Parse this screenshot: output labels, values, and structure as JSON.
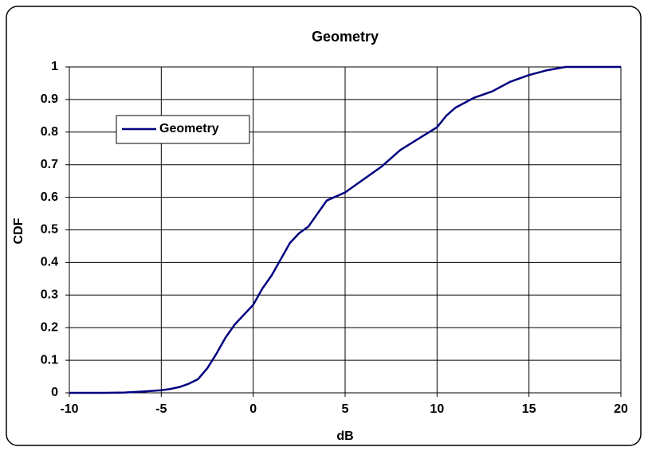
{
  "chart_data": {
    "type": "line",
    "title": "Geometry",
    "x_label": "dB",
    "y_label": "CDF",
    "x": [
      -10,
      -8,
      -7,
      -6,
      -5,
      -4.5,
      -4,
      -3.5,
      -3,
      -2.5,
      -2,
      -1.5,
      -1,
      -0.5,
      0,
      0.5,
      1,
      1.5,
      2,
      2.5,
      3,
      3.5,
      4,
      5,
      6,
      7,
      8,
      9,
      10,
      10.5,
      11,
      11.5,
      12,
      13,
      14,
      15,
      16,
      17,
      20
    ],
    "series": [
      {
        "name": "Geometry",
        "color": "#000080",
        "values": [
          0,
          0,
          0.001,
          0.004,
          0.008,
          0.012,
          0.018,
          0.028,
          0.042,
          0.075,
          0.12,
          0.17,
          0.21,
          0.24,
          0.27,
          0.32,
          0.36,
          0.41,
          0.46,
          0.49,
          0.51,
          0.55,
          0.59,
          0.615,
          0.655,
          0.695,
          0.745,
          0.78,
          0.815,
          0.85,
          0.875,
          0.89,
          0.905,
          0.925,
          0.955,
          0.975,
          0.99,
          1,
          1
        ]
      }
    ],
    "xlim": [
      -10,
      20
    ],
    "xticks": [
      -10,
      -5,
      0,
      5,
      10,
      15,
      20
    ],
    "ylim": [
      0,
      1
    ],
    "yticks": [
      0,
      0.1,
      0.2,
      0.3,
      0.4,
      0.5,
      0.6,
      0.7,
      0.8,
      0.9,
      1
    ],
    "grid": true,
    "legend_position": "upper left"
  }
}
